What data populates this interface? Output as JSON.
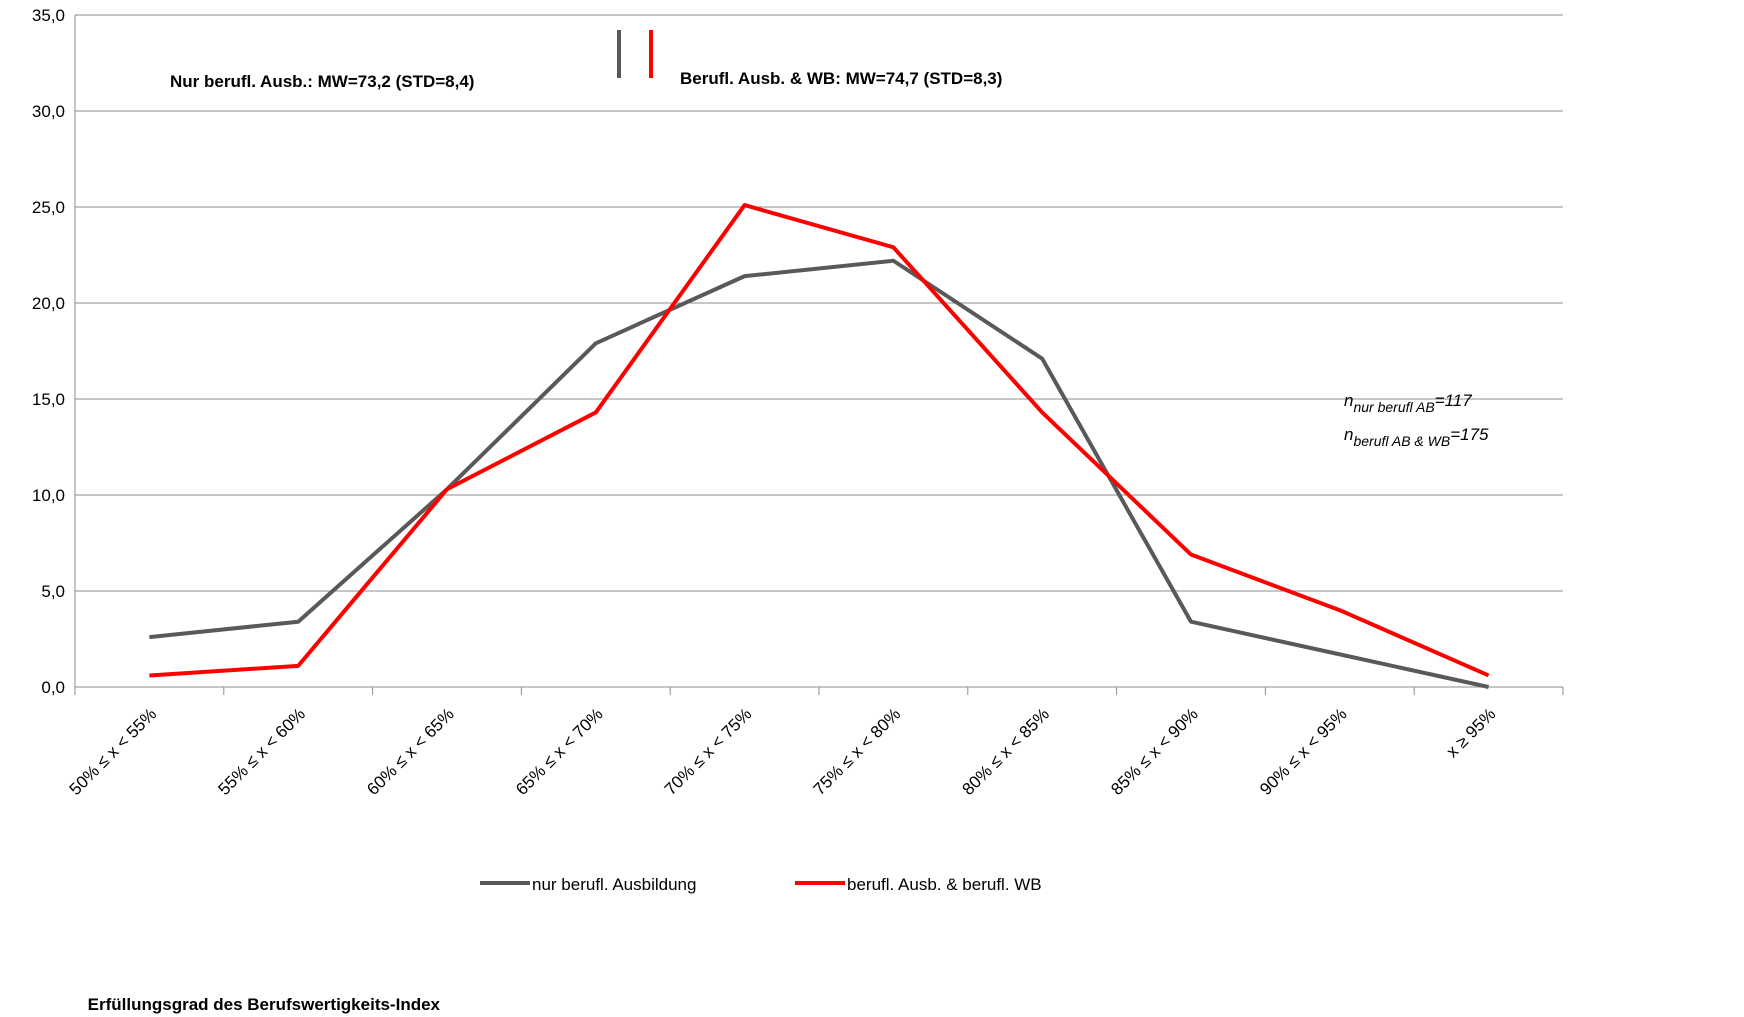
{
  "chart_data": {
    "type": "line",
    "x_title": "Erfüllungsgrad des Berufswertigkeits-Index",
    "categories": [
      "50% ≤ x < 55%",
      "55% ≤ x < 60%",
      "60% ≤ x < 65%",
      "65% ≤ x < 70%",
      "70% ≤ x < 75%",
      "75% ≤ x < 80%",
      "80% ≤ x < 85%",
      "85% ≤ x < 90%",
      "90% ≤ x < 95%",
      "x ≥ 95%"
    ],
    "series": [
      {
        "name": "nur berufl. Ausbildung",
        "color": "#595959",
        "values": [
          2.6,
          3.4,
          10.3,
          17.9,
          21.4,
          22.2,
          17.1,
          3.4,
          1.7,
          0.0
        ]
      },
      {
        "name": "berufl. Ausb. & berufl. WB",
        "color": "#ff0000",
        "values": [
          0.6,
          1.1,
          10.3,
          14.3,
          25.1,
          22.9,
          14.3,
          6.9,
          4.0,
          0.6
        ]
      }
    ],
    "ylim": [
      0,
      35
    ],
    "yticks": [
      {
        "value": 0,
        "label": "0,0"
      },
      {
        "value": 5,
        "label": "5,0"
      },
      {
        "value": 10,
        "label": "10,0"
      },
      {
        "value": 15,
        "label": "15,0"
      },
      {
        "value": 20,
        "label": "20,0"
      },
      {
        "value": 25,
        "label": "25,0"
      },
      {
        "value": 30,
        "label": "30,0"
      },
      {
        "value": 35,
        "label": "35,0"
      }
    ],
    "grid": true,
    "annotations": [
      {
        "text": "Nur berufl. Ausb.: MW=73,2 (STD=8,4)",
        "color": "#595959"
      },
      {
        "text": "Berufl. Ausb. & WB: MW=74,7 (STD=8,3)",
        "color": "#ff0000"
      }
    ],
    "n_notes": [
      {
        "base": "n",
        "sub": "nur berufl AB",
        "rest": "=117"
      },
      {
        "base": "n",
        "sub": "berufl AB & WB",
        "rest": "=175"
      }
    ]
  }
}
